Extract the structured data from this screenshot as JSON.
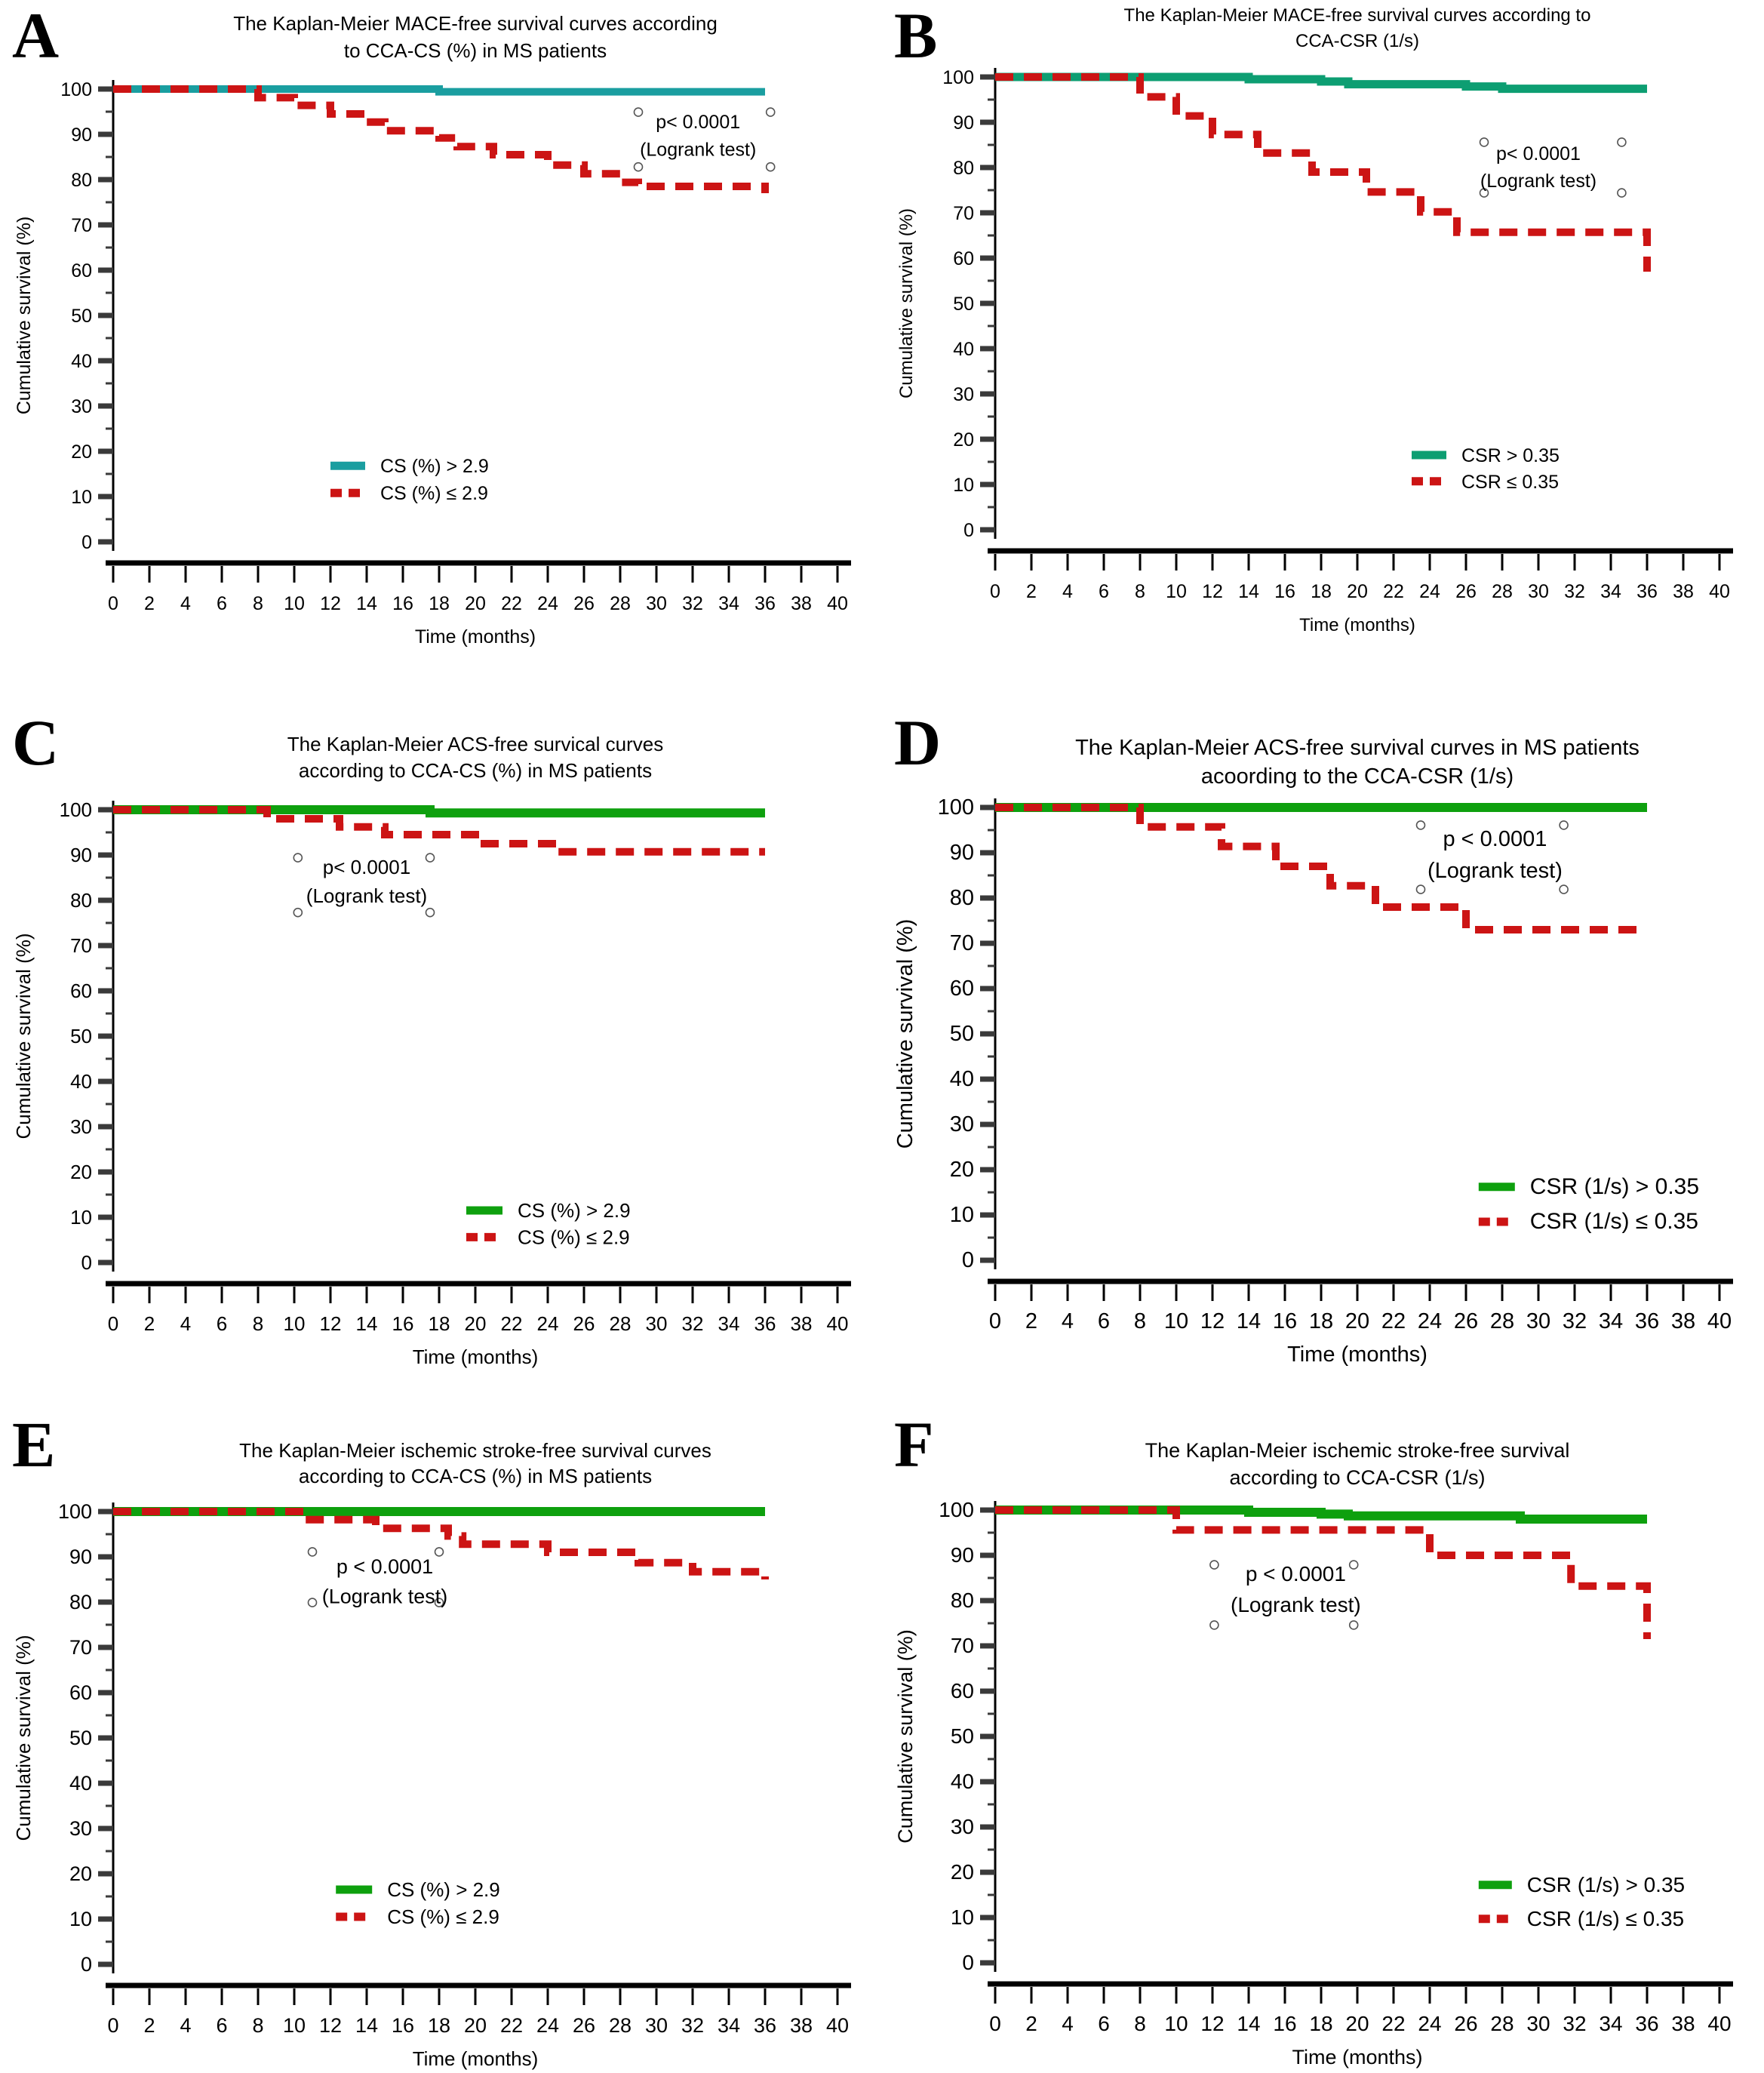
{
  "figure": {
    "xlabel": "Time (months)",
    "ylabel": "Cumulative survival (%)"
  },
  "chart_data": [
    {
      "id": "A",
      "type": "line",
      "title_lines": [
        "The Kaplan-Meier MACE-free survival curves according",
        "to CCA-CS (%) in MS patients"
      ],
      "xlabel": "Time (months)",
      "ylabel": "Cumulative survival (%)",
      "xlim": [
        0,
        40
      ],
      "ylim": [
        0,
        100
      ],
      "xtick_step": 2,
      "ytick_step": 10,
      "grid": false,
      "plot_top": 118,
      "title_y": [
        40,
        76
      ],
      "fonts": {
        "title": 26,
        "tick": 25,
        "label": 25,
        "legend": 25,
        "p": 25
      },
      "p_text": [
        "p< 0.0001",
        "(Logrank test)"
      ],
      "p_pos": {
        "x_m": 32.3,
        "y_pct": 91.3
      },
      "censor_marks": [
        [
          29,
          94.9
        ],
        [
          36.3,
          94.9
        ],
        [
          29,
          82.8
        ],
        [
          36.3,
          82.8
        ]
      ],
      "legend": {
        "x_m": 12,
        "rows_pct": [
          16.8,
          10.8
        ],
        "swatch": 46,
        "entries": [
          {
            "label": "CS (%) > 2.9",
            "color": "#1A9EA0",
            "dash": false
          },
          {
            "label": "CS (%) ≤ 2.9",
            "color": "#CC1414",
            "dash": true
          }
        ]
      },
      "series": [
        {
          "name": "CS (%) > 2.9",
          "color": "#1A9EA0",
          "dash": false,
          "lw": 10,
          "points": [
            [
              0,
              100
            ],
            [
              18,
              100
            ],
            [
              18,
              99.4
            ],
            [
              36,
              99.4
            ]
          ]
        },
        {
          "name": "CS (%) ≤ 2.9",
          "color": "#CC1414",
          "dash": true,
          "lw": 10,
          "points": [
            [
              0,
              100
            ],
            [
              8,
              100
            ],
            [
              8,
              98.1
            ],
            [
              10,
              98.1
            ],
            [
              10,
              96.4
            ],
            [
              12,
              96.4
            ],
            [
              12,
              94.5
            ],
            [
              14,
              94.5
            ],
            [
              14,
              92.7
            ],
            [
              15,
              92.7
            ],
            [
              15,
              90.8
            ],
            [
              18,
              90.8
            ],
            [
              18,
              89.2
            ],
            [
              19,
              89.2
            ],
            [
              19,
              87.3
            ],
            [
              21,
              87.3
            ],
            [
              21,
              85.5
            ],
            [
              24,
              85.5
            ],
            [
              24,
              83.2
            ],
            [
              26,
              83.2
            ],
            [
              26,
              81.3
            ],
            [
              28,
              81.3
            ],
            [
              28,
              79.4
            ],
            [
              29,
              79.4
            ],
            [
              29,
              78.5
            ],
            [
              36,
              78.5
            ],
            [
              36,
              77
            ]
          ]
        }
      ]
    },
    {
      "id": "B",
      "type": "line",
      "title_lines": [
        "The Kaplan-Meier MACE-free survival curves according to",
        "CCA-CSR (1/s)"
      ],
      "xlabel": "Time (months)",
      "ylabel": "Cumulative survival (%)",
      "xlim": [
        0,
        40
      ],
      "ylim": [
        0,
        100
      ],
      "xtick_step": 2,
      "ytick_step": 10,
      "grid": false,
      "plot_top": 102,
      "title_y": [
        28,
        62
      ],
      "fonts": {
        "title": 24,
        "tick": 25,
        "label": 24,
        "legend": 25,
        "p": 25
      },
      "p_text": [
        "p< 0.0001",
        "(Logrank test)"
      ],
      "p_pos": {
        "x_m": 30,
        "y_pct": 81.7
      },
      "censor_marks": [
        [
          27,
          85.6
        ],
        [
          34.6,
          85.6
        ],
        [
          27,
          74.4
        ],
        [
          34.6,
          74.4
        ]
      ],
      "legend": {
        "x_m": 23,
        "rows_pct": [
          16.5,
          10.7
        ],
        "swatch": 46,
        "entries": [
          {
            "label": "CSR > 0.35",
            "color": "#0D9E72",
            "dash": false
          },
          {
            "label": "CSR ≤ 0.35",
            "color": "#CC1414",
            "dash": true
          }
        ]
      },
      "series": [
        {
          "name": "CSR > 0.35",
          "color": "#0D9E72",
          "dash": false,
          "lw": 11,
          "points": [
            [
              0,
              100
            ],
            [
              14,
              100
            ],
            [
              14,
              99.5
            ],
            [
              18,
              99.5
            ],
            [
              18,
              99
            ],
            [
              19.5,
              99
            ],
            [
              19.5,
              98.4
            ],
            [
              26,
              98.4
            ],
            [
              26,
              97.9
            ],
            [
              28,
              97.9
            ],
            [
              28,
              97.4
            ],
            [
              36,
              97.4
            ]
          ]
        },
        {
          "name": "CSR ≤ 0.35",
          "color": "#CC1414",
          "dash": true,
          "lw": 10,
          "points": [
            [
              0,
              100
            ],
            [
              8,
              100
            ],
            [
              8,
              95.6
            ],
            [
              10,
              95.6
            ],
            [
              10,
              91.4
            ],
            [
              12,
              91.4
            ],
            [
              12,
              87.3
            ],
            [
              14.5,
              87.3
            ],
            [
              14.5,
              83.2
            ],
            [
              17.5,
              83.2
            ],
            [
              17.5,
              79
            ],
            [
              20.5,
              79
            ],
            [
              20.5,
              74.6
            ],
            [
              23.5,
              74.6
            ],
            [
              23.5,
              70.2
            ],
            [
              25.5,
              70.2
            ],
            [
              25.5,
              65.7
            ],
            [
              36,
              65.7
            ],
            [
              36,
              57
            ]
          ]
        }
      ]
    },
    {
      "id": "C",
      "type": "line",
      "title_lines": [
        "The Kaplan-Meier ACS-free survical curves",
        "according to CCA-CS (%) in MS patients"
      ],
      "xlabel": "Time (months)",
      "ylabel": "Cumulative survival (%)",
      "xlim": [
        0,
        40
      ],
      "ylim": [
        0,
        100
      ],
      "xtick_step": 2,
      "ytick_step": 10,
      "grid": false,
      "plot_top": 158,
      "title_y": [
        80,
        115
      ],
      "fonts": {
        "title": 26,
        "tick": 26,
        "label": 26,
        "legend": 26,
        "p": 26
      },
      "p_text": [
        "p< 0.0001",
        "(Logrank test)"
      ],
      "p_pos": {
        "x_m": 14,
        "y_pct": 85.8
      },
      "censor_marks": [
        [
          10.2,
          89.4
        ],
        [
          17.5,
          89.4
        ],
        [
          10.2,
          77.3
        ],
        [
          17.5,
          77.3
        ]
      ],
      "legend": {
        "x_m": 19.5,
        "rows_pct": [
          11.5,
          5.6
        ],
        "swatch": 48,
        "entries": [
          {
            "label": "CS (%) > 2.9",
            "color": "#0EA00E",
            "dash": false
          },
          {
            "label": "CS (%) ≤ 2.9",
            "color": "#CC1414",
            "dash": true
          }
        ]
      },
      "series": [
        {
          "name": "CS (%) > 2.9",
          "color": "#0EA00E",
          "dash": false,
          "lw": 12,
          "points": [
            [
              0,
              100
            ],
            [
              17.5,
              100
            ],
            [
              17.5,
              99.3
            ],
            [
              36,
              99.3
            ]
          ]
        },
        {
          "name": "CS (%) ≤ 2.9",
          "color": "#CC1414",
          "dash": true,
          "lw": 10,
          "points": [
            [
              0,
              100
            ],
            [
              8.5,
              100
            ],
            [
              8.5,
              98
            ],
            [
              12.5,
              98
            ],
            [
              12.5,
              96.2
            ],
            [
              15,
              96.2
            ],
            [
              15,
              94.5
            ],
            [
              20,
              94.5
            ],
            [
              20,
              92.5
            ],
            [
              24.5,
              92.5
            ],
            [
              24.5,
              90.7
            ],
            [
              36,
              90.7
            ]
          ]
        }
      ]
    },
    {
      "id": "D",
      "type": "line",
      "title_lines": [
        "The Kaplan-Meier ACS-free survival curves in MS patients",
        "acoording to the CCA-CSR (1/s)"
      ],
      "xlabel": "Time (months)",
      "ylabel": "Cumulative survival (%)",
      "xlim": [
        0,
        40
      ],
      "ylim": [
        0,
        100
      ],
      "xtick_step": 2,
      "ytick_step": 10,
      "grid": false,
      "plot_top": 155,
      "title_y": [
        85,
        123
      ],
      "fonts": {
        "title": 29,
        "tick": 29,
        "label": 29,
        "legend": 30,
        "p": 29
      },
      "p_text": [
        "p < 0.0001",
        "(Logrank test)"
      ],
      "p_pos": {
        "x_m": 27.6,
        "y_pct": 91.5
      },
      "censor_marks": [
        [
          23.5,
          96.1
        ],
        [
          31.4,
          96.1
        ],
        [
          23.5,
          81.9
        ],
        [
          31.4,
          81.9
        ]
      ],
      "legend": {
        "x_m": 26.7,
        "rows_pct": [
          16.2,
          8.5
        ],
        "swatch": 48,
        "entries": [
          {
            "label": "CSR (1/s) >  0.35",
            "color": "#0EA00E",
            "dash": false
          },
          {
            "label": "CSR (1/s) ≤  0.35",
            "color": "#CC1414",
            "dash": true
          }
        ]
      },
      "series": [
        {
          "name": "CSR (1/s) >  0.35",
          "color": "#0EA00E",
          "dash": false,
          "lw": 12,
          "points": [
            [
              0,
              100
            ],
            [
              36,
              100
            ]
          ]
        },
        {
          "name": "CSR (1/s) ≤  0.35",
          "color": "#CC1414",
          "dash": true,
          "lw": 10,
          "points": [
            [
              0,
              100
            ],
            [
              8,
              100
            ],
            [
              8,
              95.7
            ],
            [
              12.5,
              95.7
            ],
            [
              12.5,
              91.4
            ],
            [
              15.5,
              91.4
            ],
            [
              15.5,
              87
            ],
            [
              18.5,
              87
            ],
            [
              18.5,
              82.7
            ],
            [
              21,
              82.7
            ],
            [
              21,
              78
            ],
            [
              26,
              78
            ],
            [
              26,
              73
            ],
            [
              36,
              73
            ]
          ]
        }
      ]
    },
    {
      "id": "E",
      "type": "line",
      "title_lines": [
        "The Kaplan-Meier ischemic stroke-free survival curves",
        "according to CCA-CS (%) in MS patients"
      ],
      "xlabel": "Time (months)",
      "ylabel": "Cumulative survival (%)",
      "xlim": [
        0,
        40
      ],
      "ylim": [
        0,
        100
      ],
      "xtick_step": 2,
      "ytick_step": 10,
      "grid": false,
      "plot_top": 172,
      "title_y": [
        100,
        134
      ],
      "fonts": {
        "title": 26,
        "tick": 27,
        "label": 26,
        "legend": 26,
        "p": 27
      },
      "p_text": [
        "p < 0.0001",
        "(Logrank test)"
      ],
      "p_pos": {
        "x_m": 15,
        "y_pct": 86.3
      },
      "censor_marks": [
        [
          11,
          91.1
        ],
        [
          18,
          91.1
        ],
        [
          11,
          79.9
        ],
        [
          18,
          79.9
        ]
      ],
      "legend": {
        "x_m": 12.3,
        "rows_pct": [
          16.5,
          10.5
        ],
        "swatch": 48,
        "entries": [
          {
            "label": "CS (%) > 2.9",
            "color": "#0EA00E",
            "dash": false
          },
          {
            "label": "CS (%) ≤ 2.9",
            "color": "#CC1414",
            "dash": true
          }
        ]
      },
      "series": [
        {
          "name": "CS (%) > 2.9",
          "color": "#0EA00E",
          "dash": false,
          "lw": 12,
          "points": [
            [
              0,
              100
            ],
            [
              36,
              100
            ]
          ]
        },
        {
          "name": "CS (%) ≤ 2.9",
          "color": "#CC1414",
          "dash": true,
          "lw": 10,
          "points": [
            [
              0,
              100
            ],
            [
              10.5,
              100
            ],
            [
              10.5,
              98.2
            ],
            [
              14.5,
              98.2
            ],
            [
              14.5,
              96.3
            ],
            [
              18.5,
              96.3
            ],
            [
              18.5,
              94.6
            ],
            [
              19.3,
              94.6
            ],
            [
              19.3,
              92.8
            ],
            [
              24,
              92.8
            ],
            [
              24,
              91
            ],
            [
              29,
              91
            ],
            [
              29,
              88.7
            ],
            [
              32,
              88.7
            ],
            [
              32,
              86.7
            ],
            [
              36,
              86.7
            ],
            [
              36,
              85
            ]
          ]
        }
      ]
    },
    {
      "id": "F",
      "type": "line",
      "title_lines": [
        "The Kaplan-Meier ischemic stroke-free survival",
        "according to CCA-CSR (1/s)"
      ],
      "xlabel": "Time (months)",
      "ylabel": "Cumulative survival (%)",
      "xlim": [
        0,
        40
      ],
      "ylim": [
        0,
        100
      ],
      "xtick_step": 2,
      "ytick_step": 10,
      "grid": false,
      "plot_top": 170,
      "title_y": [
        100,
        136
      ],
      "fonts": {
        "title": 27,
        "tick": 28,
        "label": 27,
        "legend": 28,
        "p": 28
      },
      "p_text": [
        "p < 0.0001",
        "(Logrank test)"
      ],
      "p_pos": {
        "x_m": 16.6,
        "y_pct": 84.3
      },
      "censor_marks": [
        [
          12.1,
          87.9
        ],
        [
          19.8,
          87.9
        ],
        [
          12.1,
          74.6
        ],
        [
          19.8,
          74.6
        ]
      ],
      "legend": {
        "x_m": 26.7,
        "rows_pct": [
          17.2,
          9.7
        ],
        "swatch": 44,
        "entries": [
          {
            "label": "CSR (1/s) > 0.35",
            "color": "#0EA00E",
            "dash": false
          },
          {
            "label": "CSR (1/s) ≤  0.35",
            "color": "#CC1414",
            "dash": true
          }
        ]
      },
      "series": [
        {
          "name": "CSR (1/s) > 0.35",
          "color": "#0EA00E",
          "dash": false,
          "lw": 12,
          "points": [
            [
              0,
              100
            ],
            [
              14,
              100
            ],
            [
              14,
              99.5
            ],
            [
              18,
              99.5
            ],
            [
              18,
              99.1
            ],
            [
              19.5,
              99.1
            ],
            [
              19.5,
              98.7
            ],
            [
              29,
              98.7
            ],
            [
              29,
              98
            ],
            [
              36,
              98
            ]
          ]
        },
        {
          "name": "CSR (1/s) ≤  0.35",
          "color": "#CC1414",
          "dash": true,
          "lw": 10,
          "points": [
            [
              0,
              100
            ],
            [
              10,
              100
            ],
            [
              10,
              95.6
            ],
            [
              24,
              95.6
            ],
            [
              24,
              90
            ],
            [
              31.8,
              90
            ],
            [
              31.8,
              83.2
            ],
            [
              36,
              83.2
            ],
            [
              36,
              71.5
            ]
          ]
        }
      ]
    }
  ]
}
